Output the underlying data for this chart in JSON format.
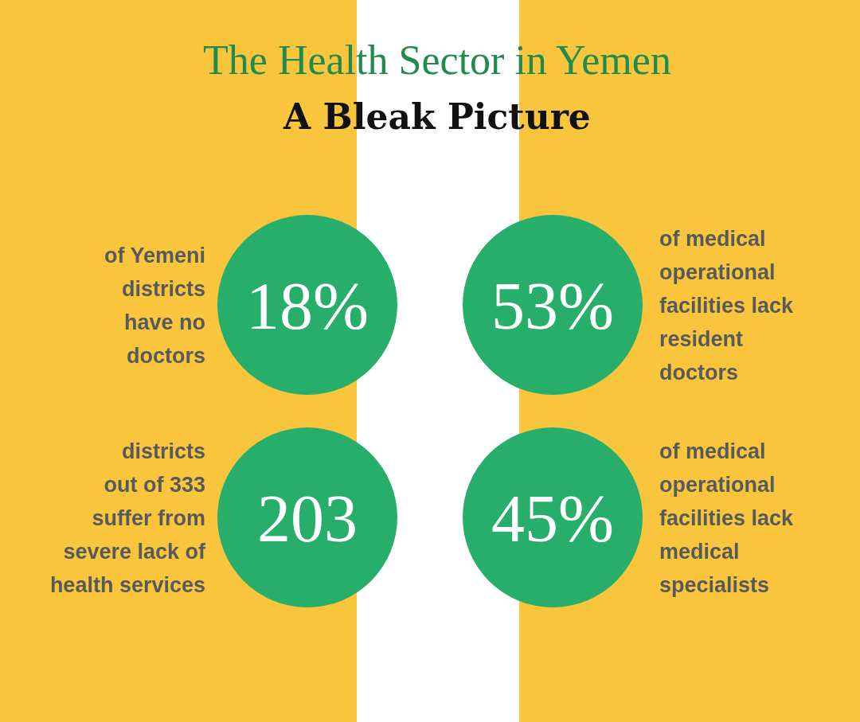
{
  "chart_data": {
    "type": "other",
    "title": "The Health Sector in Yemen",
    "subtitle": "A Bleak Picture",
    "categories": [
      "of Yemeni\ndistricts\nhave no\ndoctors",
      "of medical\noperational\nfacilities lack\nresident\ndoctors",
      "districts\nout of 333\nsuffer from\nsevere lack of\nhealth services",
      "of medical\noperational\nfacilities lack\nmedical\nspecialists"
    ],
    "values": [
      18,
      53,
      203,
      45
    ],
    "value_labels": [
      "18%",
      "53%",
      "203",
      "45%"
    ],
    "colors": [
      "#27ae6a",
      "#27ae6a",
      "#27ae6a",
      "#27ae6a"
    ]
  }
}
